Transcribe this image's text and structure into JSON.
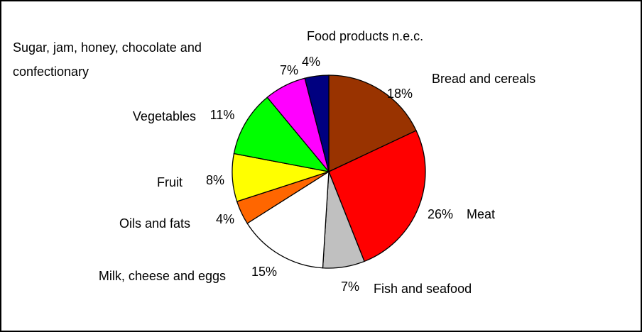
{
  "chart_data": {
    "type": "pie",
    "categories": [
      "Bread and cereals",
      "Meat",
      "Fish and seafood",
      "Milk, cheese and eggs",
      "Oils and fats",
      "Fruit",
      "Vegetables",
      "Sugar, jam, honey, chocolate and confectionary",
      "Food products n.e.c."
    ],
    "values": [
      18,
      26,
      7,
      15,
      4,
      8,
      11,
      7,
      4
    ],
    "value_labels": [
      "18%",
      "26%",
      "7%",
      "15%",
      "4%",
      "8%",
      "11%",
      "7%",
      "4%"
    ],
    "colors": [
      "#993300",
      "#ff0000",
      "#c0c0c0",
      "#ffffff",
      "#ff6600",
      "#ffff00",
      "#00ff00",
      "#ff00ff",
      "#000080"
    ]
  }
}
